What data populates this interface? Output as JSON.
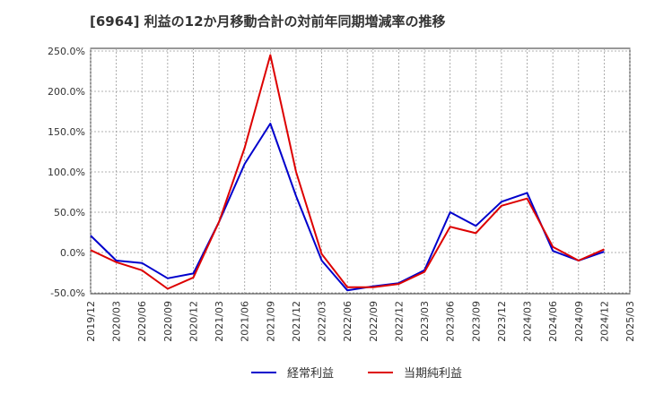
{
  "chart_data": {
    "type": "line",
    "title": "[6964]  利益の12か月移動合計の対前年同期増減率の推移",
    "xlabel": "",
    "ylabel": "",
    "ylim": [
      -50,
      250
    ],
    "yticks": [
      250,
      200,
      150,
      100,
      50,
      0,
      -50
    ],
    "ytick_labels": [
      "250.0%",
      "200.0%",
      "150.0%",
      "100.0%",
      "50.0%",
      "0.0%",
      "-50.0%"
    ],
    "categories": [
      "2019/12",
      "2020/03",
      "2020/06",
      "2020/09",
      "2020/12",
      "2021/03",
      "2021/06",
      "2021/09",
      "2021/12",
      "2022/03",
      "2022/06",
      "2022/09",
      "2022/12",
      "2023/03",
      "2023/06",
      "2023/09",
      "2023/12",
      "2024/03",
      "2024/06",
      "2024/09",
      "2024/12",
      "2025/03"
    ],
    "grid": true,
    "legend_position": "bottom",
    "series": [
      {
        "name": "経常利益",
        "color": "#0000cc",
        "values": [
          21,
          -10,
          -13,
          -32,
          -26,
          38,
          110,
          160,
          70,
          -10,
          -47,
          -42,
          -38,
          -22,
          50,
          33,
          63,
          74,
          2,
          -10,
          1,
          null
        ]
      },
      {
        "name": "当期純利益",
        "color": "#dd0000",
        "values": [
          3,
          -12,
          -22,
          -45,
          -31,
          38,
          130,
          245,
          100,
          -2,
          -43,
          -43,
          -39,
          -24,
          32,
          24,
          58,
          67,
          7,
          -10,
          4,
          null
        ]
      }
    ]
  }
}
